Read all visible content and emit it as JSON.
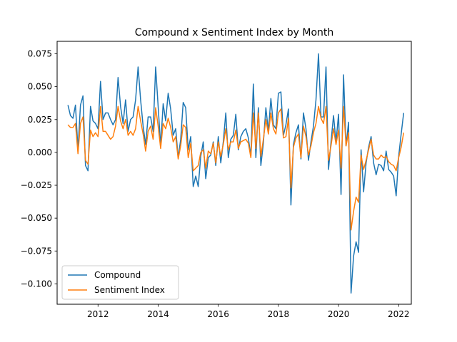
{
  "chart_data": {
    "type": "line",
    "title": "Compound x Sentiment Index by Month",
    "xlabel": "",
    "ylabel": "",
    "xlim": [
      2010.64,
      2022.42
    ],
    "ylim": [
      -0.1155,
      0.0845
    ],
    "xticks": [
      2012,
      2014,
      2016,
      2018,
      2020,
      2022
    ],
    "xtick_labels": [
      "2012",
      "2014",
      "2016",
      "2018",
      "2020",
      "2022"
    ],
    "yticks": [
      -0.1,
      -0.075,
      -0.05,
      -0.025,
      0.0,
      0.025,
      0.05,
      0.075
    ],
    "ytick_labels": [
      "−0.100",
      "−0.075",
      "−0.050",
      "−0.025",
      "0.000",
      "0.025",
      "0.050",
      "0.075"
    ],
    "grid": false,
    "legend_position": "lower-left",
    "x_start": 2011.0,
    "x_step": 0.08333,
    "series": [
      {
        "name": "Compound",
        "color": "#1f77b4",
        "values": [
          0.036,
          0.028,
          0.026,
          0.036,
          0.002,
          0.036,
          0.043,
          -0.01,
          -0.014,
          0.035,
          0.024,
          0.022,
          0.018,
          0.054,
          0.025,
          0.03,
          0.03,
          0.025,
          0.021,
          0.025,
          0.057,
          0.035,
          0.022,
          0.04,
          0.016,
          0.025,
          0.027,
          0.04,
          0.065,
          0.04,
          0.02,
          0.006,
          0.027,
          0.027,
          0.016,
          0.065,
          0.035,
          0.005,
          0.037,
          0.024,
          0.045,
          0.033,
          0.013,
          0.018,
          -0.004,
          0.01,
          0.038,
          0.034,
          0.002,
          0.012,
          -0.026,
          -0.018,
          -0.026,
          -0.003,
          0.008,
          -0.02,
          -0.004,
          -0.002,
          0.008,
          -0.01,
          0.012,
          -0.008,
          0.008,
          0.03,
          -0.004,
          0.01,
          0.013,
          0.029,
          0.002,
          0.012,
          0.016,
          0.018,
          0.011,
          -0.003,
          0.052,
          -0.004,
          0.034,
          -0.01,
          0.007,
          0.034,
          0.016,
          0.041,
          0.021,
          0.018,
          0.045,
          0.046,
          0.013,
          0.021,
          0.033,
          -0.04,
          0.006,
          0.015,
          0.021,
          -0.005,
          0.03,
          0.018,
          -0.006,
          0.008,
          0.02,
          0.04,
          0.075,
          0.027,
          0.027,
          0.065,
          -0.013,
          0.008,
          0.028,
          0.008,
          0.029,
          -0.032,
          0.059,
          0.005,
          0.023,
          -0.107,
          -0.079,
          -0.068,
          -0.076,
          0.002,
          -0.03,
          -0.008,
          0.004,
          0.012,
          -0.008,
          -0.017,
          -0.009,
          -0.01,
          -0.014,
          0.001,
          -0.013,
          -0.015,
          -0.018,
          -0.033,
          -0.003,
          0.014,
          0.03
        ]
      },
      {
        "name": "Sentiment Index",
        "color": "#ff7f0e",
        "values": [
          0.021,
          0.019,
          0.019,
          0.022,
          -0.001,
          0.022,
          0.027,
          -0.006,
          -0.009,
          0.017,
          0.012,
          0.015,
          0.012,
          0.035,
          0.016,
          0.016,
          0.013,
          0.01,
          0.012,
          0.02,
          0.035,
          0.024,
          0.018,
          0.025,
          0.013,
          0.016,
          0.013,
          0.018,
          0.035,
          0.024,
          0.014,
          0.001,
          0.016,
          0.02,
          0.01,
          0.034,
          0.02,
          0.003,
          0.022,
          0.018,
          0.026,
          0.019,
          0.008,
          0.012,
          -0.005,
          0.005,
          0.021,
          0.019,
          -0.004,
          0.007,
          -0.014,
          -0.012,
          -0.01,
          0.0,
          0.002,
          -0.012,
          0.001,
          -0.001,
          0.007,
          -0.008,
          0.008,
          -0.003,
          0.006,
          0.018,
          0.002,
          0.008,
          0.008,
          0.017,
          0.003,
          0.008,
          0.009,
          0.01,
          0.007,
          -0.004,
          0.03,
          0.003,
          0.03,
          -0.003,
          0.01,
          0.025,
          0.014,
          0.03,
          0.018,
          0.014,
          0.03,
          0.033,
          0.011,
          0.012,
          0.026,
          -0.027,
          0.004,
          0.011,
          0.014,
          -0.004,
          0.02,
          0.012,
          -0.002,
          0.005,
          0.015,
          0.022,
          0.035,
          0.026,
          0.022,
          0.035,
          -0.006,
          0.005,
          0.018,
          0.006,
          0.017,
          -0.012,
          0.035,
          0.005,
          0.015,
          -0.059,
          -0.045,
          -0.034,
          -0.038,
          -0.002,
          -0.013,
          -0.006,
          0.002,
          0.01,
          -0.002,
          -0.005,
          -0.005,
          -0.002,
          -0.004,
          -0.003,
          -0.007,
          -0.009,
          -0.01,
          -0.014,
          -0.004,
          0.004,
          0.015
        ]
      }
    ]
  }
}
